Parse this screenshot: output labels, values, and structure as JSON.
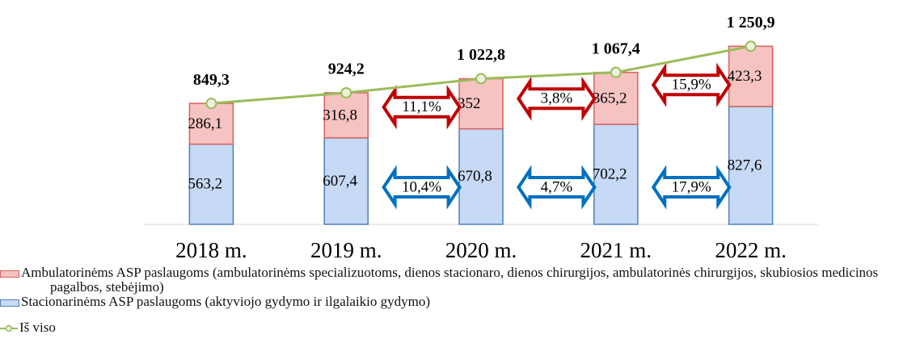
{
  "chart_data": {
    "type": "bar",
    "stacked": true,
    "categories": [
      "2018 m.",
      "2019 m.",
      "2020 m.",
      "2021 m.",
      "2022 m."
    ],
    "ylim": [
      0,
      1400
    ],
    "series": [
      {
        "name": "Stacionarinėms ASP paslaugoms (aktyviojo gydymo ir ilgalaikio gydymo)",
        "color": "#c6d9f5",
        "stroke": "#4f81bd",
        "values": [
          563.2,
          607.4,
          670.8,
          702.2,
          827.6
        ],
        "value_labels": [
          "563,2",
          "607,4",
          "670,8",
          "702,2",
          "827,6"
        ],
        "change_labels": [
          null,
          null,
          "10,4%",
          "4,7%",
          "17,9%"
        ],
        "arrow_color": "#0070c0"
      },
      {
        "name": "Ambulatorinėms ASP paslaugoms (ambulatorinėms specializuotoms, dienos stacionaro, dienos chirurgijos, ambulatorinės chirurgijos, skubiosios medicinos pagalbos, stebėjimo)",
        "color": "#f5c3c2",
        "stroke": "#d9605c",
        "values": [
          286.1,
          316.8,
          352,
          365.2,
          423.3
        ],
        "value_labels": [
          "286,1",
          "316,8",
          "352",
          "365,2",
          "423,3"
        ],
        "change_labels": [
          null,
          null,
          "11,1%",
          "3,8%",
          "15,9%"
        ],
        "arrow_color": "#c00000"
      }
    ],
    "line": {
      "name": "Iš viso",
      "color": "#9bbb59",
      "values": [
        849.3,
        924.2,
        1022.8,
        1067.4,
        1250.9
      ],
      "value_labels": [
        "849,3",
        "924,2",
        "1 022,8",
        "1 067,4",
        "1 250,9"
      ]
    }
  }
}
